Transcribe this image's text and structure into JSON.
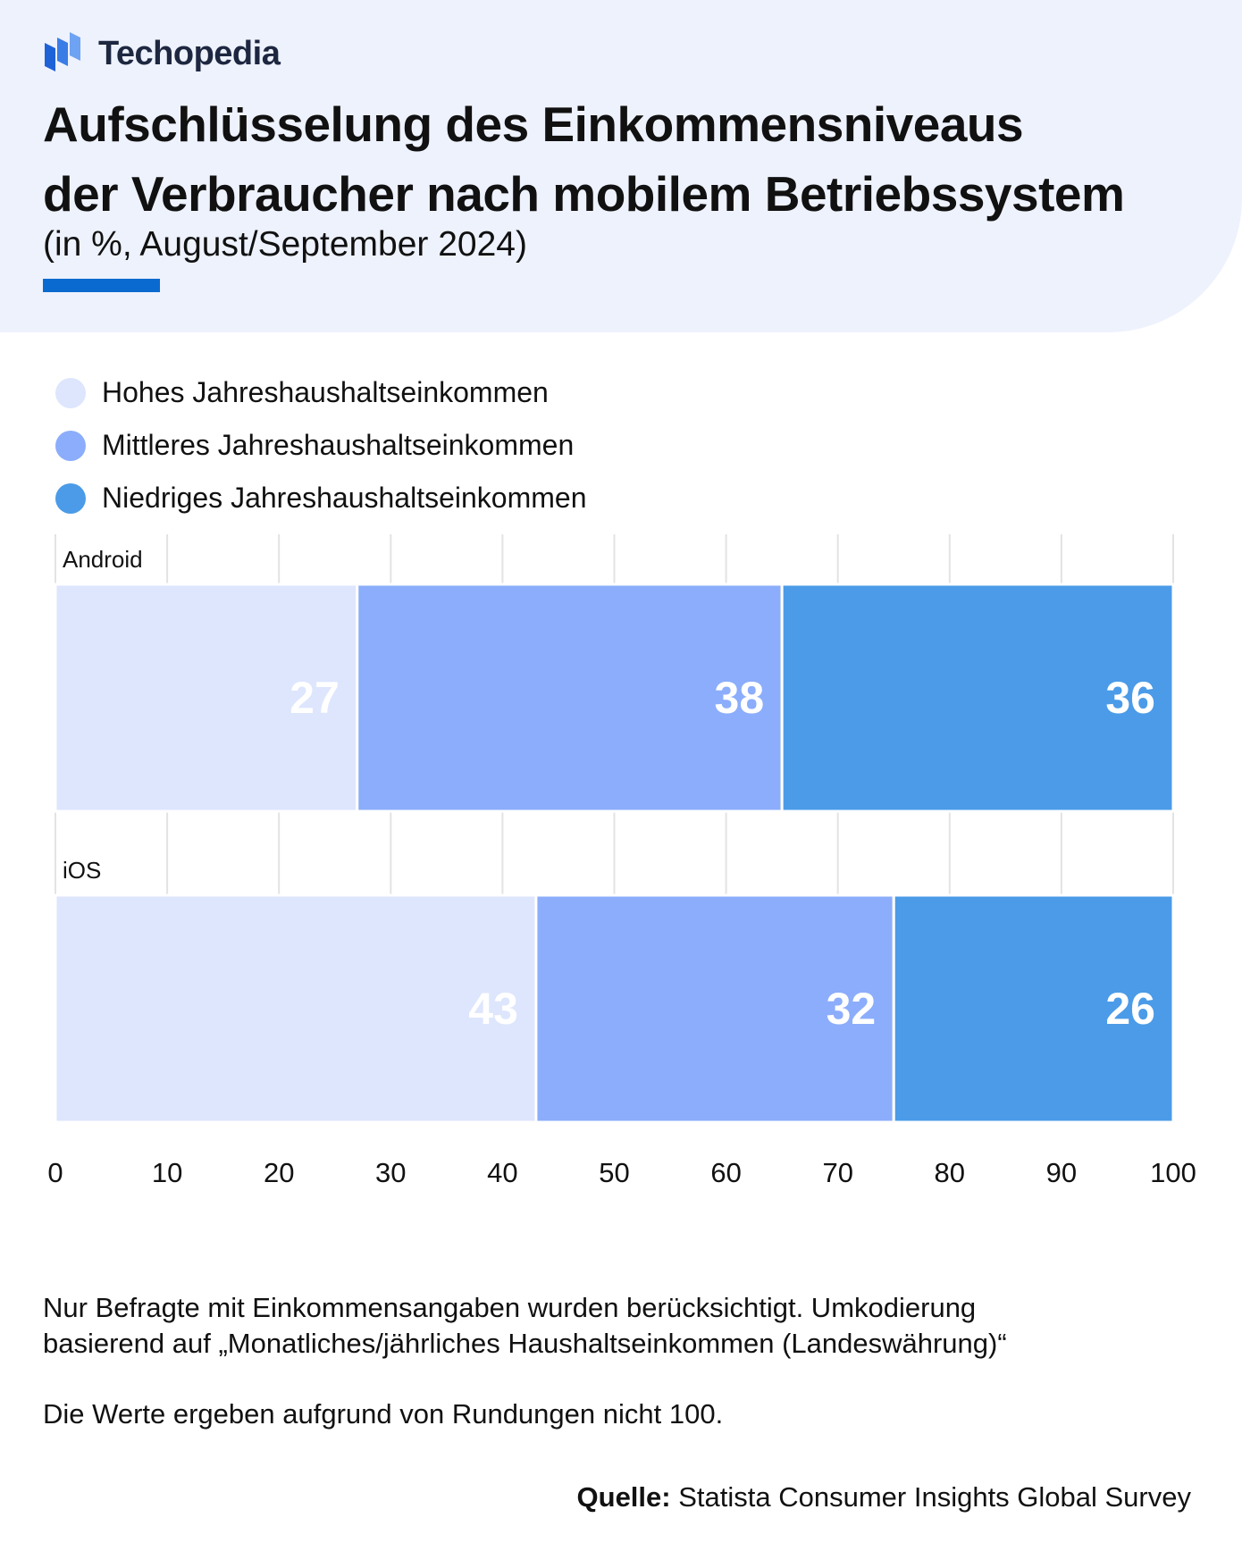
{
  "brand": {
    "name": "Techopedia",
    "logo_icon": "techopedia-logo-icon",
    "color": "#1e62d8"
  },
  "title": {
    "line1": "Aufschlüsselung des Einkommensniveaus",
    "line2": "der Verbraucher nach mobilem Betriebssystem"
  },
  "subtitle": "(in %, August/September 2024)",
  "chart_data": {
    "type": "bar",
    "orientation": "horizontal",
    "stacked": true,
    "title": "Aufschlüsselung des Einkommensniveaus der Verbraucher nach mobilem Betriebssystem",
    "subtitle": "(in %, August/September 2024)",
    "categories": [
      "Android",
      "iOS"
    ],
    "series": [
      {
        "name": "Hohes Jahreshaushaltseinkommen",
        "color": "#dde6fd",
        "values": [
          27,
          43
        ]
      },
      {
        "name": "Mittleres Jahreshaushaltseinkommen",
        "color": "#8badfb",
        "values": [
          38,
          32
        ]
      },
      {
        "name": "Niedriges Jahreshaushaltseinkommen",
        "color": "#4b9be8",
        "values": [
          36,
          26
        ]
      }
    ],
    "xlim": [
      0,
      100
    ],
    "xticks": [
      0,
      10,
      20,
      30,
      40,
      50,
      60,
      70,
      80,
      90,
      100
    ],
    "grid": true,
    "legend_position": "top-left"
  },
  "notes": {
    "note1_line1": "Nur Befragte mit Einkommensangaben wurden berücksichtigt. Umkodierung",
    "note1_line2": "basierend auf „Monatliches/jährliches Haushaltseinkommen (Landeswährung)“",
    "note2": "Die Werte ergeben aufgrund von Rundungen nicht 100."
  },
  "source": {
    "label": "Quelle:",
    "text": "Statista Consumer Insights Global Survey"
  }
}
